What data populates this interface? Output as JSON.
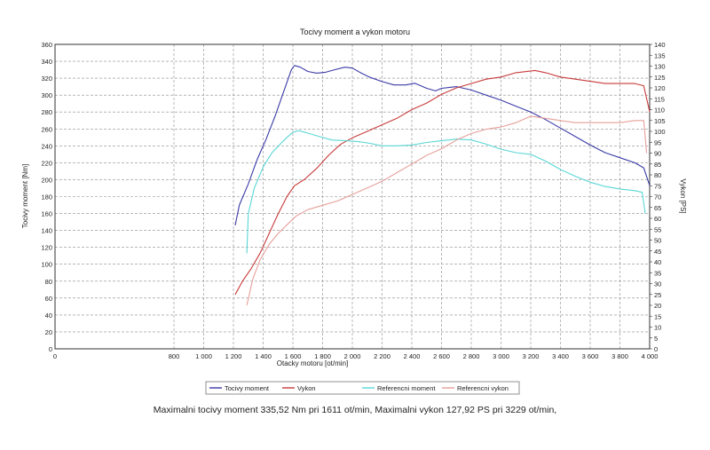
{
  "chart_data": {
    "type": "line",
    "title": "Tocivy moment a vykon motoru",
    "xlabel": "Otacky motoru [ot/min]",
    "ylabel_left": "Tocivy moment [Nm]",
    "ylabel_right": "Vykon [PS]",
    "xlim": [
      0,
      4000
    ],
    "ylim_left": [
      0,
      360
    ],
    "ylim_right": [
      0,
      140
    ],
    "x_ticks": [
      0,
      800,
      1000,
      1200,
      1400,
      1600,
      1800,
      2000,
      2200,
      2400,
      2600,
      2800,
      3000,
      3200,
      3400,
      3600,
      3800,
      4000
    ],
    "x_tick_labels": [
      "0",
      "800",
      "1 000",
      "1 200",
      "1 400",
      "1 600",
      "1 800",
      "2 000",
      "2 200",
      "2 400",
      "2 600",
      "2 800",
      "3 000",
      "3 200",
      "3 400",
      "3 600",
      "3 800",
      "4 000"
    ],
    "y_left_ticks": [
      0,
      20,
      40,
      60,
      80,
      100,
      120,
      140,
      160,
      180,
      200,
      220,
      240,
      260,
      280,
      300,
      320,
      340,
      360
    ],
    "y_right_ticks": [
      0,
      5,
      10,
      15,
      20,
      25,
      30,
      35,
      40,
      45,
      50,
      55,
      60,
      65,
      70,
      75,
      80,
      85,
      90,
      95,
      100,
      105,
      110,
      115,
      120,
      125,
      130,
      135,
      140
    ],
    "grid": true,
    "legend_position": "bottom",
    "series": [
      {
        "name": "Tocivy moment",
        "axis": "left",
        "color": "#3a3aa8",
        "x": [
          1212,
          1240,
          1300,
          1360,
          1420,
          1480,
          1540,
          1590,
          1611,
          1650,
          1700,
          1760,
          1820,
          1880,
          1950,
          2000,
          2060,
          2120,
          2200,
          2280,
          2360,
          2420,
          2500,
          2560,
          2600,
          2650,
          2700,
          2800,
          2900,
          3000,
          3100,
          3200,
          3300,
          3400,
          3500,
          3600,
          3700,
          3800,
          3900,
          3960,
          4000
        ],
        "y": [
          146,
          170,
          195,
          224,
          248,
          275,
          305,
          330,
          335,
          333,
          328,
          326,
          327,
          330,
          333,
          332,
          326,
          321,
          316,
          312,
          312,
          314,
          308,
          305,
          308,
          309,
          310,
          306,
          300,
          294,
          287,
          280,
          271,
          261,
          251,
          241,
          232,
          226,
          220,
          214,
          193
        ]
      },
      {
        "name": "Vykon",
        "axis": "right",
        "color": "#c83a3a",
        "x": [
          1212,
          1260,
          1320,
          1380,
          1440,
          1500,
          1560,
          1611,
          1680,
          1760,
          1840,
          1920,
          2000,
          2100,
          2200,
          2300,
          2400,
          2500,
          2600,
          2700,
          2800,
          2900,
          3000,
          3100,
          3229,
          3300,
          3400,
          3500,
          3600,
          3700,
          3800,
          3900,
          3960,
          4000
        ],
        "y": [
          25,
          31,
          37,
          44,
          53,
          62,
          70,
          75,
          78,
          83,
          89,
          94,
          97,
          100,
          103,
          106,
          110,
          113,
          117,
          120,
          122,
          124,
          125,
          127,
          128,
          127,
          125,
          124,
          123,
          122,
          122,
          122,
          121,
          109
        ]
      },
      {
        "name": "Referencni moment",
        "axis": "left",
        "color": "#5ad6d6",
        "x": [
          1290,
          1300,
          1340,
          1400,
          1460,
          1520,
          1560,
          1600,
          1640,
          1700,
          1780,
          1860,
          1960,
          2040,
          2120,
          2200,
          2300,
          2400,
          2500,
          2600,
          2700,
          2800,
          2900,
          3000,
          3100,
          3200,
          3300,
          3400,
          3500,
          3600,
          3700,
          3800,
          3900,
          3950,
          3970
        ],
        "y": [
          113,
          160,
          190,
          215,
          232,
          243,
          250,
          256,
          258,
          255,
          251,
          247,
          246,
          245,
          243,
          240,
          240,
          241,
          244,
          246,
          248,
          247,
          242,
          236,
          232,
          230,
          222,
          212,
          204,
          197,
          192,
          189,
          187,
          185,
          160
        ]
      },
      {
        "name": "Referencni vykon",
        "axis": "right",
        "color": "#e5a09a",
        "x": [
          1290,
          1330,
          1380,
          1440,
          1500,
          1560,
          1620,
          1700,
          1800,
          1900,
          2000,
          2100,
          2200,
          2300,
          2400,
          2500,
          2600,
          2700,
          2800,
          2900,
          3000,
          3100,
          3200,
          3300,
          3400,
          3500,
          3600,
          3700,
          3800,
          3900,
          3960,
          3980
        ],
        "y": [
          20,
          32,
          41,
          48,
          53,
          57,
          61,
          64,
          66,
          68,
          71,
          74,
          77,
          81,
          85,
          89,
          92,
          96,
          99,
          101,
          102,
          104,
          107,
          106,
          105,
          104,
          104,
          104,
          104,
          105,
          105,
          90
        ]
      }
    ],
    "summary": "Maximalni tocivy moment 335,52 Nm pri 1611 ot/min,  Maximalni vykon 127,92 PS pri 3229 ot/min,"
  }
}
